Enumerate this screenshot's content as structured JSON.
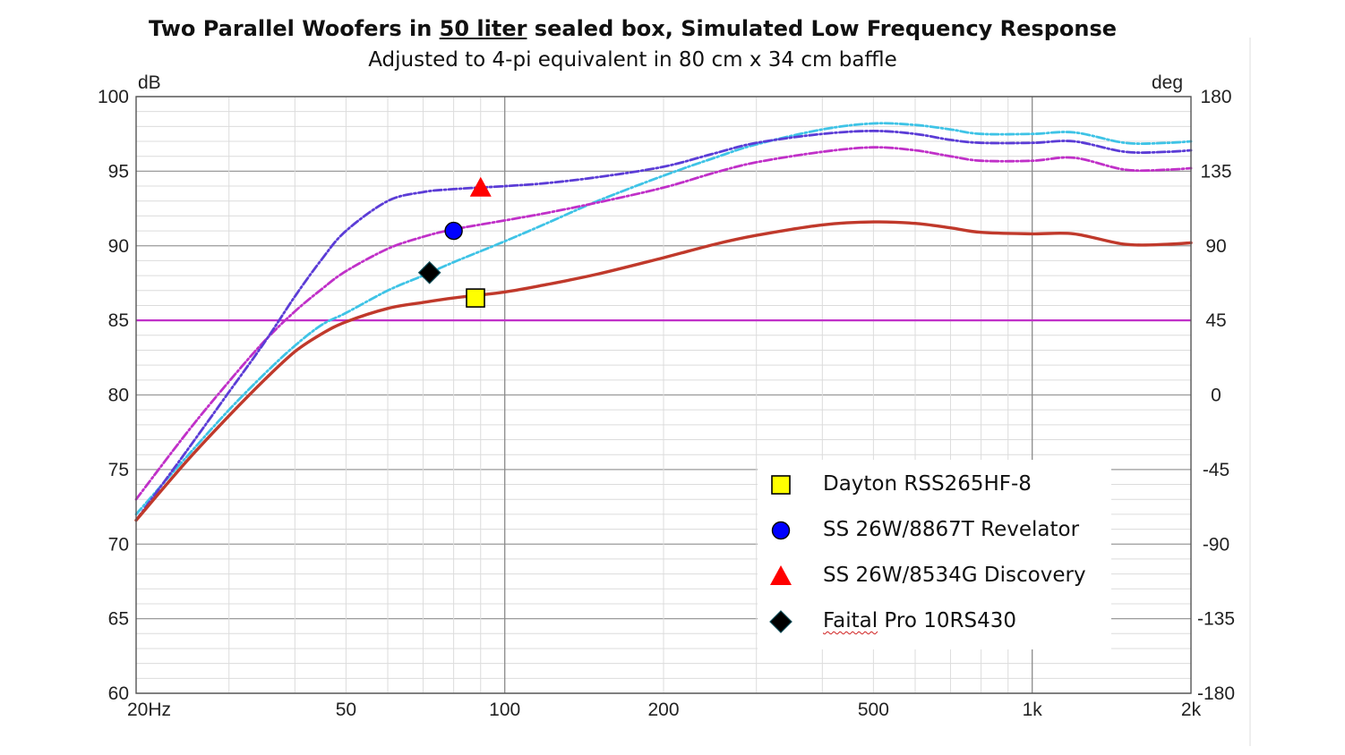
{
  "chart_data": {
    "type": "line",
    "title": "Two Parallel Woofers in 50 liter sealed box, Simulated Low Frequency Response",
    "title_parts": {
      "before": "Two Parallel Woofers in ",
      "underlined": "50 liter",
      "after": " sealed box, Simulated Low Frequency Response"
    },
    "subtitle": "Adjusted to 4-pi equivalent in 80 cm x 34 cm baffle",
    "ylabel_left": "dB",
    "ylabel_right": "deg",
    "xscale": "log",
    "xlim": [
      20,
      2000
    ],
    "ylim": [
      60,
      100
    ],
    "ylim_right": [
      -180,
      180
    ],
    "grid": true,
    "x_ticks": [
      {
        "value": 20,
        "label": "20Hz"
      },
      {
        "value": 50,
        "label": "50"
      },
      {
        "value": 100,
        "label": "100"
      },
      {
        "value": 200,
        "label": "200"
      },
      {
        "value": 500,
        "label": "500"
      },
      {
        "value": 1000,
        "label": "1k"
      },
      {
        "value": 2000,
        "label": "2k"
      }
    ],
    "y_ticks_left": [
      "60",
      "65",
      "70",
      "75",
      "80",
      "85",
      "90",
      "95",
      "100"
    ],
    "y_ticks_right": [
      "-180",
      "-135",
      "-90",
      "-45",
      "0",
      "45",
      "90",
      "135",
      "180"
    ],
    "reference_line": {
      "y": 85,
      "color": "#c030c8"
    },
    "series": [
      {
        "name": "Dayton RSS265HF-8",
        "color": "#c0392b",
        "style": "solid",
        "marker": "square",
        "marker_color": "#ffff00",
        "marker_point": [
          88,
          86.5
        ],
        "x": [
          20,
          25,
          30,
          35,
          40,
          45,
          50,
          60,
          70,
          80,
          100,
          120,
          150,
          200,
          250,
          300,
          400,
          500,
          600,
          700,
          800,
          1000,
          1200,
          1500,
          1800,
          2000
        ],
        "y": [
          71.6,
          75.6,
          78.6,
          81.0,
          82.9,
          84.1,
          84.9,
          85.8,
          86.2,
          86.5,
          86.9,
          87.4,
          88.1,
          89.2,
          90.1,
          90.7,
          91.4,
          91.6,
          91.5,
          91.2,
          90.9,
          90.8,
          90.8,
          90.1,
          90.1,
          90.2
        ]
      },
      {
        "name": "SS 26W/8867T Revelator",
        "color": "#c030c8",
        "style": "dashdot",
        "marker": "circle",
        "marker_color": "#0000ff",
        "marker_point": [
          80,
          91.0
        ],
        "x": [
          20,
          25,
          30,
          35,
          40,
          45,
          50,
          60,
          70,
          80,
          100,
          120,
          150,
          200,
          250,
          300,
          400,
          500,
          600,
          700,
          800,
          1000,
          1200,
          1500,
          1800,
          2000
        ],
        "y": [
          73.0,
          77.5,
          80.9,
          83.6,
          85.6,
          87.1,
          88.3,
          89.8,
          90.6,
          91.1,
          91.7,
          92.2,
          92.9,
          93.9,
          94.9,
          95.6,
          96.3,
          96.6,
          96.4,
          96.0,
          95.7,
          95.7,
          95.9,
          95.1,
          95.1,
          95.2
        ]
      },
      {
        "name": "SS 26W/8534G Discovery",
        "color": "#5b3cd6",
        "style": "dashdot",
        "marker": "triangle",
        "marker_color": "#ff0000",
        "marker_point": [
          90,
          93.9
        ],
        "x": [
          20,
          25,
          30,
          35,
          40,
          45,
          50,
          60,
          70,
          80,
          100,
          120,
          150,
          200,
          250,
          300,
          400,
          500,
          600,
          700,
          800,
          1000,
          1200,
          1500,
          1800,
          2000
        ],
        "y": [
          71.6,
          76.3,
          80.2,
          83.5,
          86.6,
          89.1,
          91.0,
          93.0,
          93.6,
          93.8,
          94.0,
          94.2,
          94.6,
          95.3,
          96.2,
          96.9,
          97.5,
          97.7,
          97.5,
          97.1,
          96.9,
          96.9,
          97.0,
          96.3,
          96.3,
          96.4
        ]
      },
      {
        "name": "Faital Pro 10RS430",
        "color": "#3ec3e6",
        "style": "dashdot",
        "marker": "diamond",
        "marker_color": "#000000",
        "marker_point": [
          72,
          88.2
        ],
        "x": [
          20,
          25,
          30,
          35,
          40,
          45,
          50,
          60,
          70,
          80,
          100,
          120,
          150,
          200,
          250,
          300,
          400,
          500,
          600,
          700,
          800,
          1000,
          1200,
          1500,
          1800,
          2000
        ],
        "y": [
          72.0,
          75.9,
          79.0,
          81.4,
          83.3,
          84.7,
          85.5,
          87.0,
          88.0,
          88.9,
          90.3,
          91.5,
          93.0,
          94.7,
          95.9,
          96.8,
          97.8,
          98.2,
          98.1,
          97.8,
          97.5,
          97.5,
          97.6,
          96.9,
          96.9,
          97.0
        ]
      }
    ],
    "legend": {
      "placement": "bottom-right"
    }
  }
}
